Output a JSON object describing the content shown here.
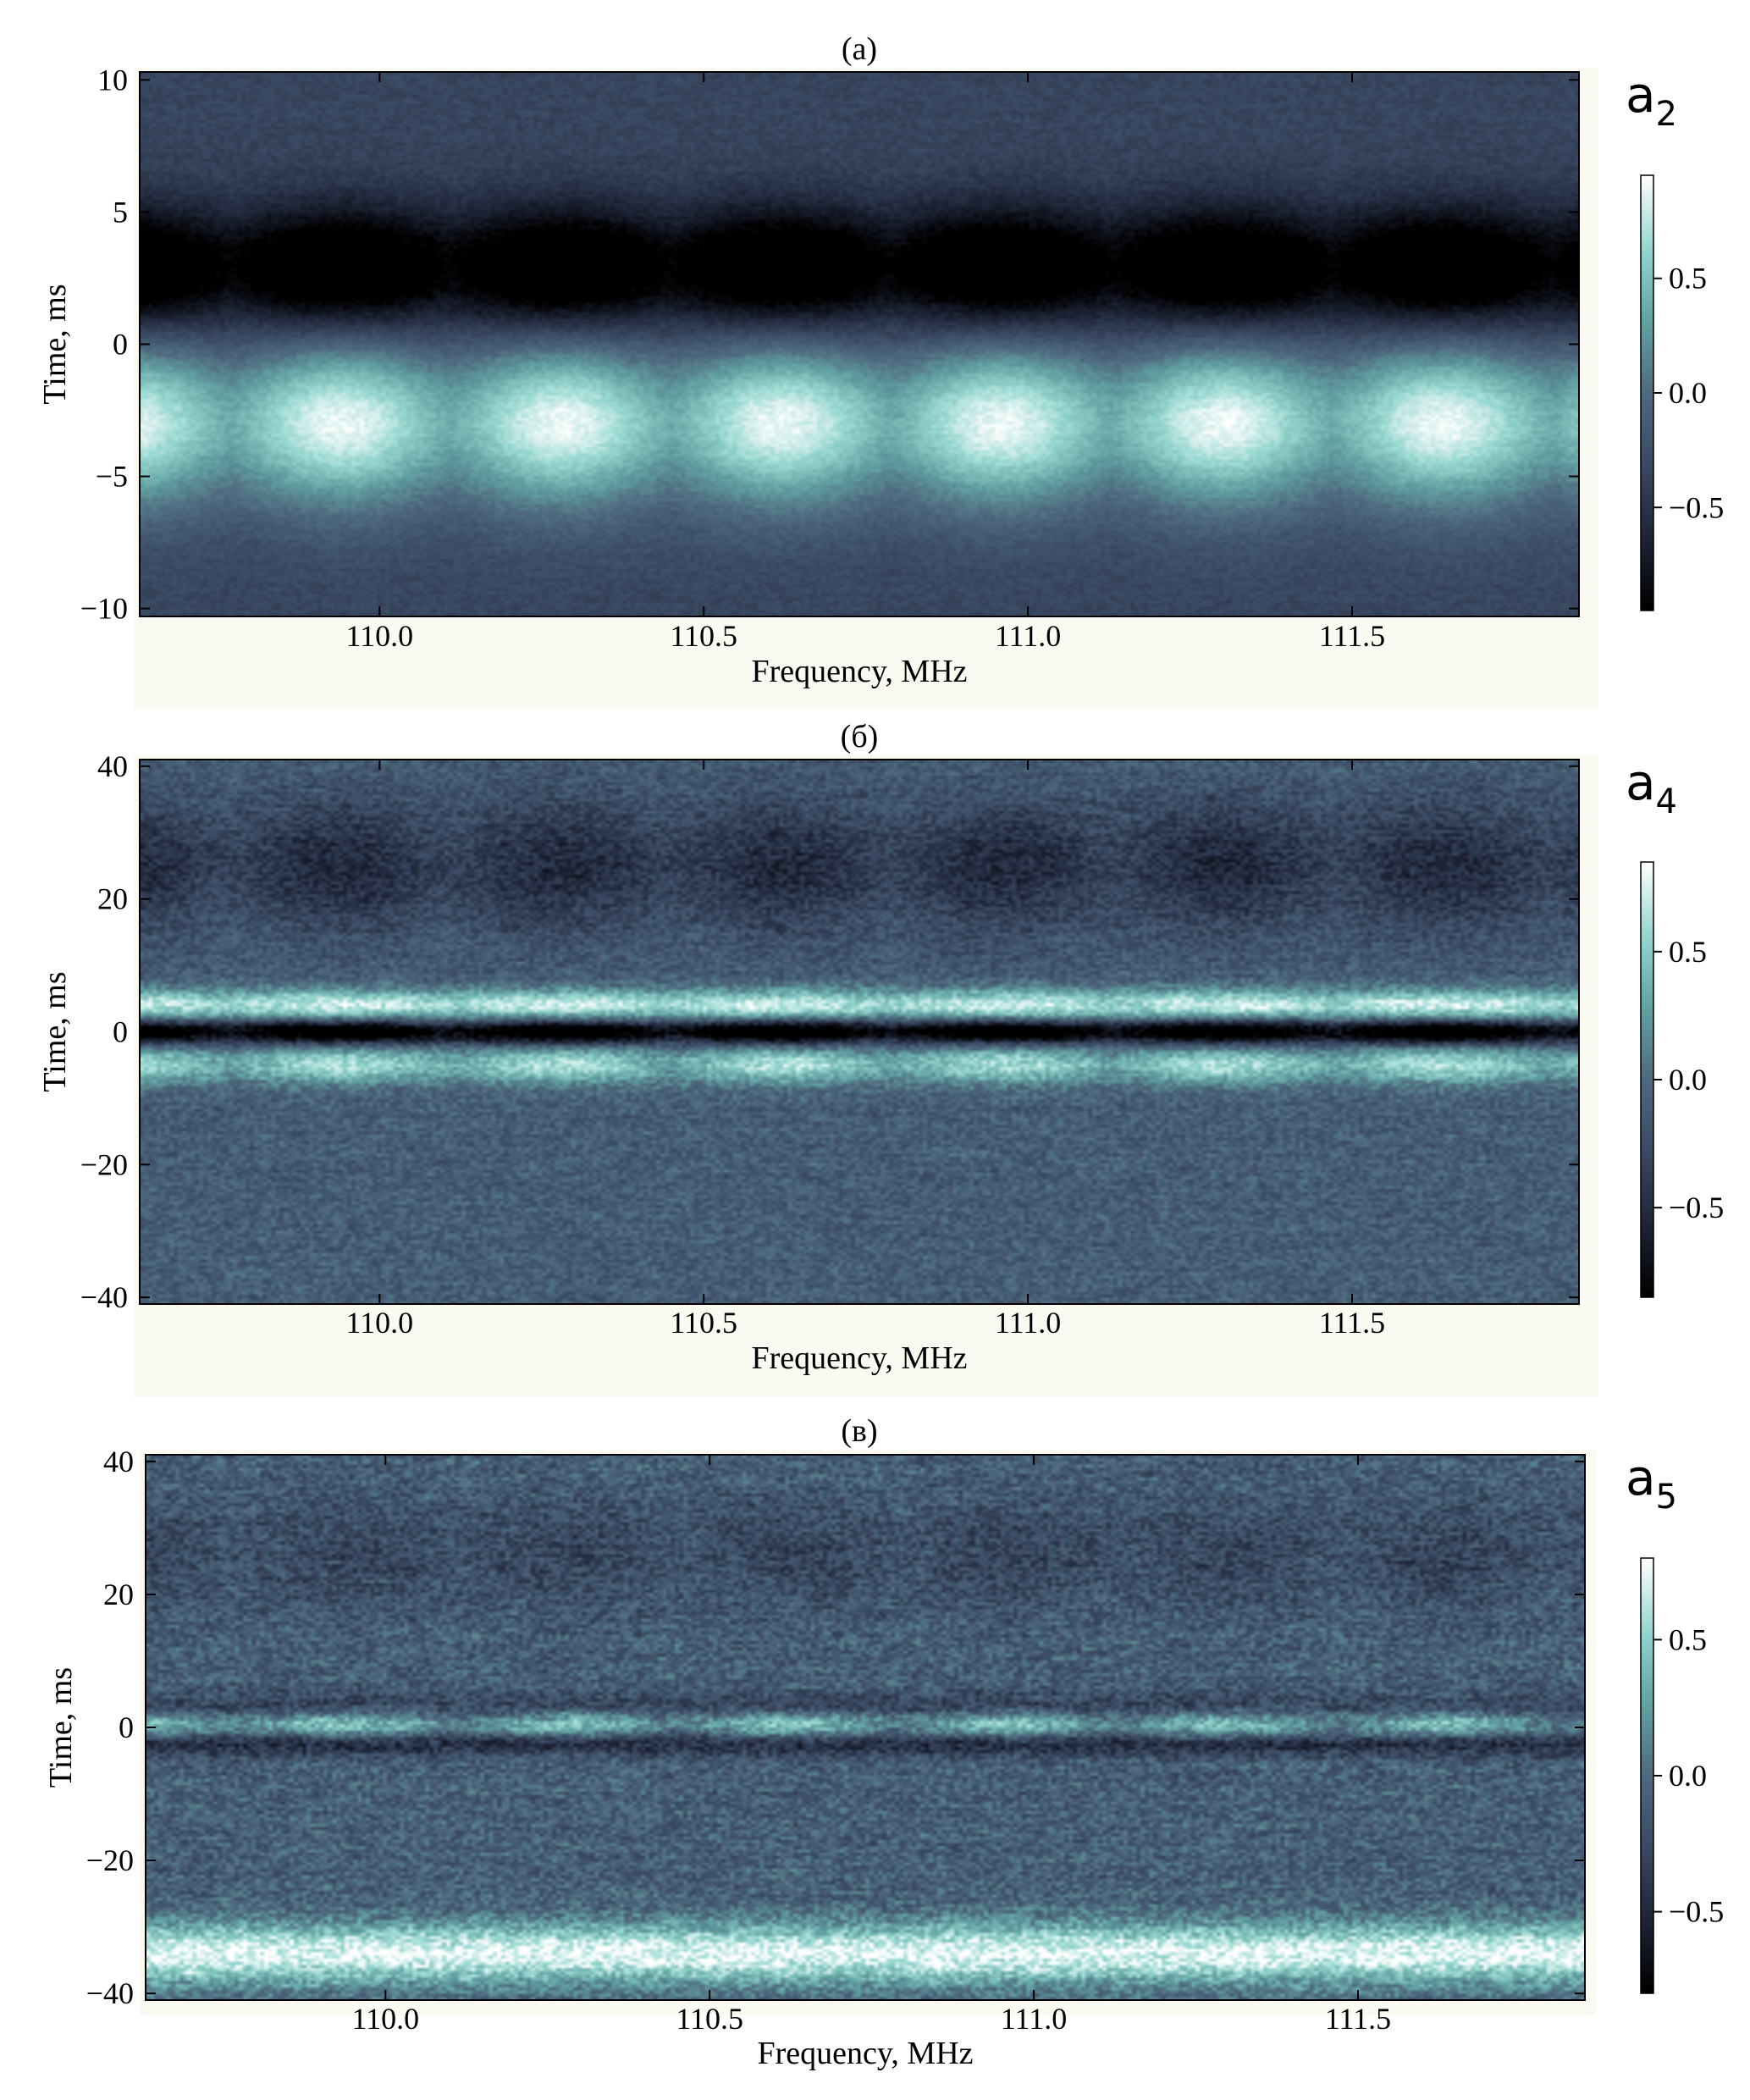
{
  "figure_style": {
    "background": "#ffffff",
    "panel_backdrop": "#fbfaf2",
    "colormap": [
      "#000000",
      "#1f2538",
      "#3a4a63",
      "#4f6b80",
      "#62a3a3",
      "#96d7d0",
      "#ffffff"
    ]
  },
  "chart_data": [
    {
      "type": "heatmap",
      "panel_label": "(а)",
      "title": "",
      "xlabel": "Frequency, MHz",
      "ylabel": "Time, ms",
      "xlim": [
        109.63,
        111.85
      ],
      "ylim": [
        -10.3,
        10.3
      ],
      "xticks": [
        110.0,
        110.5,
        111.0,
        111.5
      ],
      "xtick_labels": [
        "110.0",
        "110.5",
        "111.0",
        "111.5"
      ],
      "yticks": [
        10,
        5,
        0,
        -5,
        -10
      ],
      "ytick_labels": [
        "10",
        "5",
        "0",
        "−5",
        "−10"
      ],
      "colorbar": {
        "title": "a",
        "subscript": "2",
        "range": [
          -0.95,
          0.95
        ],
        "ticks": [
          0.5,
          0.0,
          -0.5
        ],
        "tick_labels": [
          "0.5",
          "0.0",
          "−0.5"
        ]
      },
      "pattern": {
        "period_MHz": 0.34,
        "phase_MHz": 109.94,
        "edge_amplitude": 0.45,
        "background_level": -0.35,
        "noise_amplitude": 0.07,
        "features": [
          {
            "center_time_ms": 2.8,
            "time_width_ms": 1.7,
            "freq_width_MHz": 0.12,
            "amplitude": -0.95
          },
          {
            "center_time_ms": -3.0,
            "time_width_ms": 2.2,
            "freq_width_MHz": 0.1,
            "amplitude": 1.25
          }
        ]
      }
    },
    {
      "type": "heatmap",
      "panel_label": "(б)",
      "title": "",
      "xlabel": "Frequency, MHz",
      "ylabel": "Time, ms",
      "xlim": [
        109.63,
        111.85
      ],
      "ylim": [
        -41,
        41
      ],
      "xticks": [
        110.0,
        110.5,
        111.0,
        111.5
      ],
      "xtick_labels": [
        "110.0",
        "110.5",
        "111.0",
        "111.5"
      ],
      "yticks": [
        40,
        20,
        0,
        -20,
        -40
      ],
      "ytick_labels": [
        "40",
        "20",
        "0",
        "−20",
        "−40"
      ],
      "colorbar": {
        "title": "a",
        "subscript": "4",
        "range": [
          -0.85,
          0.85
        ],
        "ticks": [
          0.5,
          0.0,
          -0.5
        ],
        "tick_labels": [
          "0.5",
          "0.0",
          "−0.5"
        ]
      },
      "pattern": {
        "period_MHz": 0.34,
        "phase_MHz": 109.94,
        "edge_amplitude": 0.3,
        "background_level": -0.12,
        "noise_amplitude": 0.16,
        "features": [
          {
            "center_time_ms": 25,
            "time_width_ms": 7,
            "freq_width_MHz": 0.11,
            "amplitude": -0.42
          },
          {
            "center_time_ms": 4,
            "time_width_ms": 1.7,
            "freq_width_MHz": 0.2,
            "amplitude": 0.85
          },
          {
            "center_time_ms": 0,
            "time_width_ms": 1.3,
            "freq_width_MHz": 0.14,
            "amplitude": -1.1
          },
          {
            "center_time_ms": -5,
            "time_width_ms": 2.0,
            "freq_width_MHz": 0.12,
            "amplitude": 0.75
          }
        ]
      }
    },
    {
      "type": "heatmap",
      "panel_label": "(в)",
      "title": "",
      "xlabel": "Frequency, MHz",
      "ylabel": "Time, ms",
      "xlim": [
        109.63,
        111.85
      ],
      "ylim": [
        -41,
        41
      ],
      "xticks": [
        110.0,
        110.5,
        111.0,
        111.5
      ],
      "xtick_labels": [
        "110.0",
        "110.5",
        "111.0",
        "111.5"
      ],
      "yticks": [
        40,
        20,
        0,
        -20,
        -40
      ],
      "ytick_labels": [
        "40",
        "20",
        "0",
        "−20",
        "−40"
      ],
      "colorbar": {
        "title": "a",
        "subscript": "5",
        "range": [
          -0.8,
          0.8
        ],
        "ticks": [
          0.5,
          0.0,
          -0.5
        ],
        "tick_labels": [
          "0.5",
          "0.0",
          "−0.5"
        ]
      },
      "pattern": {
        "period_MHz": 0.34,
        "phase_MHz": 109.94,
        "edge_amplitude": 0.2,
        "background_level": -0.1,
        "noise_amplitude": 0.2,
        "features": [
          {
            "center_time_ms": 26,
            "time_width_ms": 6,
            "freq_width_MHz": 0.12,
            "amplitude": -0.2
          },
          {
            "center_time_ms": 3,
            "time_width_ms": 1.6,
            "freq_width_MHz": 0.25,
            "amplitude": -0.25
          },
          {
            "center_time_ms": 0.5,
            "time_width_ms": 1.4,
            "freq_width_MHz": 0.1,
            "amplitude": 0.65
          },
          {
            "center_time_ms": -2.5,
            "time_width_ms": 1.3,
            "freq_width_MHz": 0.5,
            "amplitude": -0.4
          },
          {
            "center_time_ms": -34,
            "time_width_ms": 3.2,
            "freq_width_MHz": 5.0,
            "amplitude": 0.85
          }
        ]
      }
    }
  ]
}
